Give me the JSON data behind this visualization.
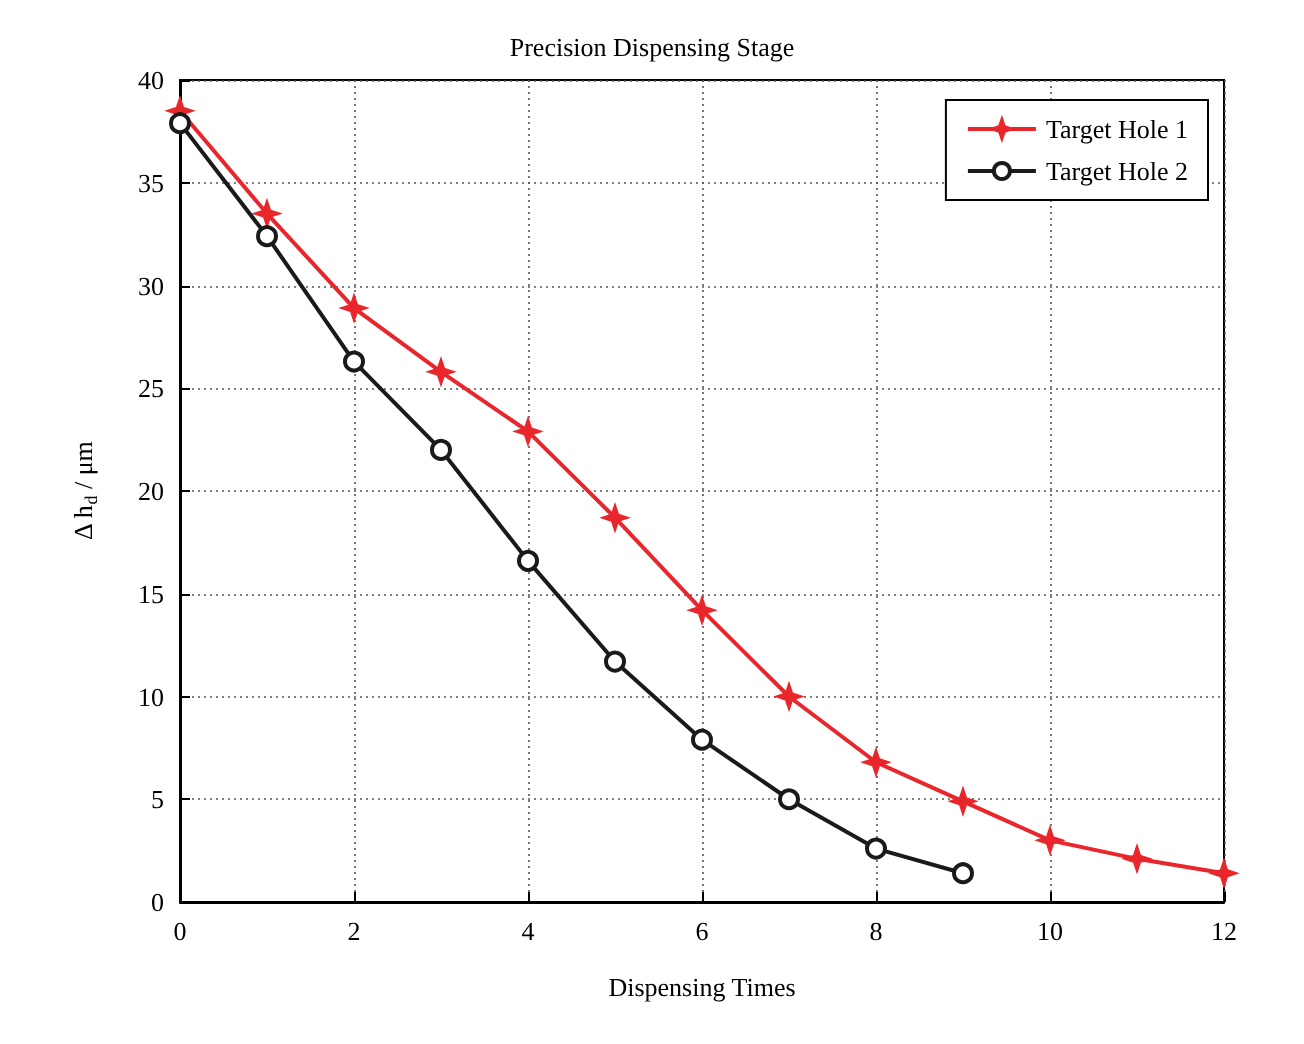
{
  "chart_data": {
    "type": "line",
    "title": "Precision Dispensing Stage",
    "xlabel": "Dispensing Times",
    "ylabel": "Δ h$_{d}$ / μm",
    "x": [
      0,
      1,
      2,
      3,
      4,
      5,
      6,
      7,
      8,
      9,
      10,
      11,
      12
    ],
    "series": [
      {
        "name": "Target Hole 1",
        "color": "#e8262b",
        "marker": "star",
        "values": [
          38.5,
          33.5,
          28.9,
          25.8,
          22.9,
          18.7,
          14.2,
          10.0,
          6.8,
          4.9,
          3.0,
          2.1,
          1.4
        ]
      },
      {
        "name": "Target Hole 2",
        "color": "#1a1a1a",
        "marker": "circle",
        "values": [
          37.9,
          32.4,
          26.3,
          22.0,
          16.6,
          11.7,
          7.9,
          5.0,
          2.6,
          1.4,
          null,
          null,
          null
        ]
      }
    ],
    "xlim": [
      0,
      12
    ],
    "xticks": [
      0,
      2,
      4,
      6,
      8,
      10,
      12
    ],
    "ylim": [
      0,
      40
    ],
    "yticks": [
      0,
      5,
      10,
      15,
      20,
      25,
      30,
      35,
      40
    ],
    "grid": true,
    "legend": "top right",
    "line_style": "solid"
  }
}
